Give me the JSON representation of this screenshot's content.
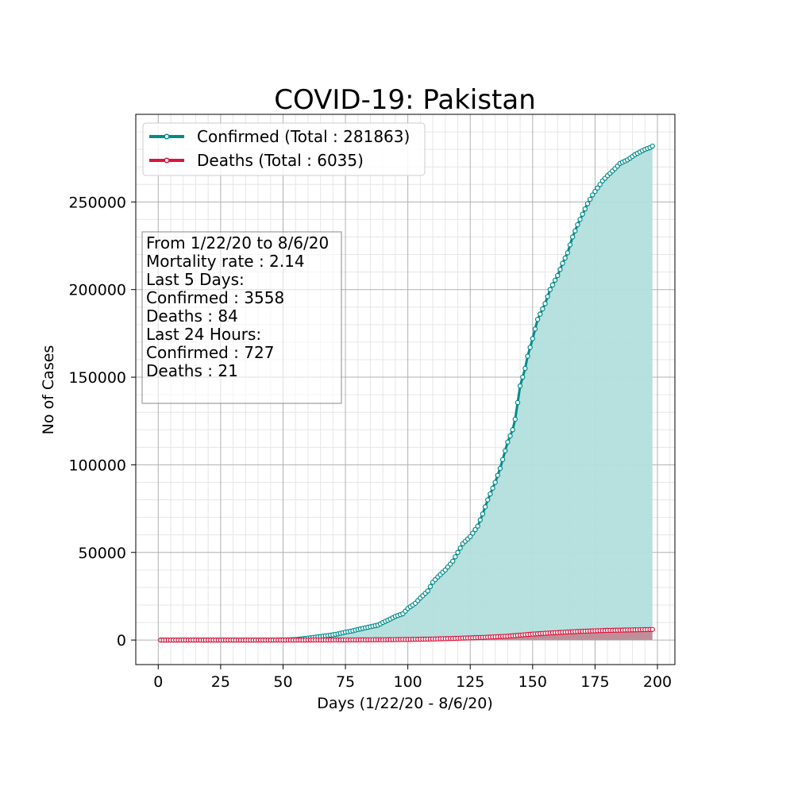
{
  "chart_data": {
    "type": "area",
    "title": "COVID-19: Pakistan",
    "xlabel": "Days (1/22/20 - 8/6/20)",
    "ylabel": "No of Cases",
    "xlim": [
      -9,
      207
    ],
    "ylim": [
      -14000,
      300000
    ],
    "x_ticks": [
      0,
      25,
      50,
      75,
      100,
      125,
      150,
      175,
      200
    ],
    "y_ticks": [
      0,
      50000,
      100000,
      150000,
      200000,
      250000
    ],
    "grid": true,
    "legend_position": "top-left",
    "series": [
      {
        "name": "Confirmed (Total : 281863)",
        "color": "#008B8B",
        "fill": "#b2dfdd",
        "points": [
          [
            1,
            0
          ],
          [
            35,
            0
          ],
          [
            45,
            0
          ],
          [
            52,
            100
          ],
          [
            55,
            300
          ],
          [
            58,
            800
          ],
          [
            60,
            1100
          ],
          [
            62,
            1500
          ],
          [
            65,
            2000
          ],
          [
            68,
            2600
          ],
          [
            70,
            3000
          ],
          [
            72,
            3500
          ],
          [
            75,
            4500
          ],
          [
            78,
            5300
          ],
          [
            80,
            6000
          ],
          [
            83,
            7000
          ],
          [
            85,
            7600
          ],
          [
            88,
            8500
          ],
          [
            90,
            10000
          ],
          [
            93,
            12000
          ],
          [
            95,
            13500
          ],
          [
            98,
            15000
          ],
          [
            100,
            18000
          ],
          [
            103,
            21000
          ],
          [
            105,
            24000
          ],
          [
            108,
            28000
          ],
          [
            110,
            33000
          ],
          [
            112,
            36000
          ],
          [
            115,
            40000
          ],
          [
            118,
            45000
          ],
          [
            120,
            50000
          ],
          [
            122,
            55000
          ],
          [
            125,
            59000
          ],
          [
            128,
            65000
          ],
          [
            130,
            72000
          ],
          [
            132,
            80000
          ],
          [
            135,
            90000
          ],
          [
            137,
            98000
          ],
          [
            140,
            113000
          ],
          [
            142,
            120000
          ],
          [
            143,
            126000
          ],
          [
            145,
            145000
          ],
          [
            147,
            155000
          ],
          [
            148,
            162000
          ],
          [
            150,
            172000
          ],
          [
            152,
            183000
          ],
          [
            155,
            192000
          ],
          [
            157,
            200000
          ],
          [
            160,
            208000
          ],
          [
            162,
            215000
          ],
          [
            164,
            221000
          ],
          [
            166,
            230000
          ],
          [
            168,
            237000
          ],
          [
            170,
            243000
          ],
          [
            172,
            249000
          ],
          [
            174,
            254000
          ],
          [
            176,
            258000
          ],
          [
            178,
            262000
          ],
          [
            180,
            265000
          ],
          [
            183,
            269000
          ],
          [
            185,
            272000
          ],
          [
            188,
            274000
          ],
          [
            191,
            277000
          ],
          [
            193,
            278500
          ],
          [
            195,
            280000
          ],
          [
            197,
            281000
          ],
          [
            198,
            281863
          ]
        ]
      },
      {
        "name": "Deaths (Total : 6035)",
        "color": "#DC143C",
        "fill": "#c0808d",
        "points": [
          [
            1,
            0
          ],
          [
            50,
            0
          ],
          [
            60,
            20
          ],
          [
            70,
            60
          ],
          [
            80,
            100
          ],
          [
            90,
            180
          ],
          [
            100,
            350
          ],
          [
            110,
            600
          ],
          [
            120,
            1000
          ],
          [
            130,
            1500
          ],
          [
            140,
            2200
          ],
          [
            150,
            3400
          ],
          [
            160,
            4300
          ],
          [
            170,
            5000
          ],
          [
            180,
            5500
          ],
          [
            190,
            5800
          ],
          [
            198,
            6035
          ]
        ]
      }
    ],
    "info_box": [
      "From 1/22/20 to 8/6/20",
      "Mortality rate : 2.14",
      "Last 5 Days:",
      "Confirmed : 3558",
      "Deaths : 84",
      "Last 24 Hours:",
      "Confirmed : 727",
      "Deaths : 21"
    ]
  }
}
